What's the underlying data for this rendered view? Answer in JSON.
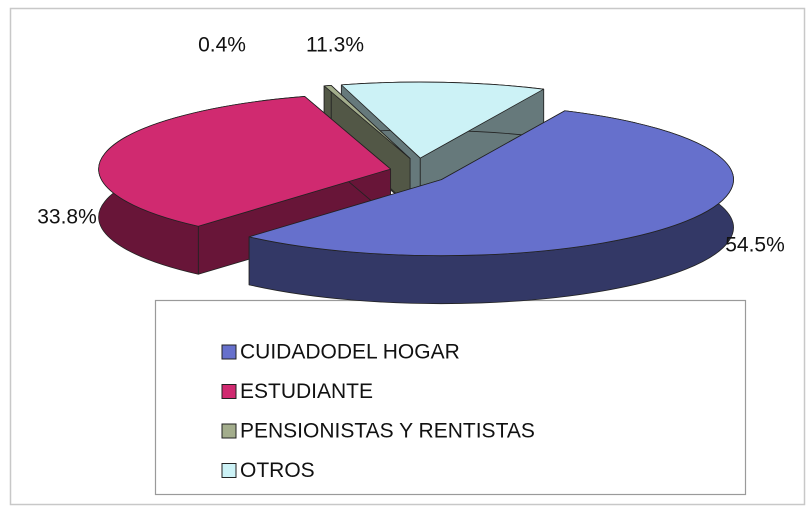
{
  "chart_data": {
    "type": "pie3d",
    "categories": [
      "CUIDADODEL HOGAR",
      "ESTUDIANTE",
      "PENSIONISTAS Y RENTISTAS",
      "OTROS"
    ],
    "values": [
      54.5,
      33.8,
      0.4,
      11.3
    ],
    "value_labels": [
      "54.5%",
      "33.8%",
      "0.4%",
      "11.3%"
    ],
    "colors": [
      "#6670cc",
      "#d02a70",
      "#a3ad8c",
      "#ccf2f6"
    ],
    "legend": "bottom"
  }
}
